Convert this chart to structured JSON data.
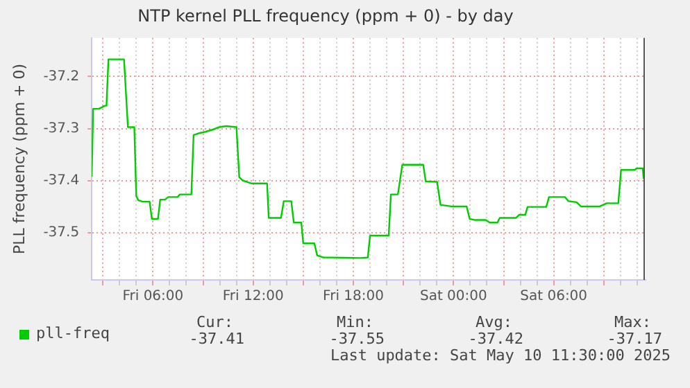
{
  "chart_data": {
    "type": "line",
    "title": "NTP kernel PLL frequency (ppm + 0) - by day",
    "ylabel": "PLL frequency (ppm + 0)",
    "xlim": [
      "2025-05-09T02:20",
      "2025-05-10T11:30"
    ],
    "ylim": [
      -37.59,
      -37.126
    ],
    "yticks": [
      -37.5,
      -37.4,
      -37.3,
      -37.2
    ],
    "xticks": [
      {
        "value": "2025-05-09T03:00",
        "label": null
      },
      {
        "value": "2025-05-09T04:00",
        "label": null
      },
      {
        "value": "2025-05-09T05:00",
        "label": null
      },
      {
        "value": "2025-05-09T06:00",
        "label": "Fri 06:00"
      },
      {
        "value": "2025-05-09T07:00",
        "label": null
      },
      {
        "value": "2025-05-09T08:00",
        "label": null
      },
      {
        "value": "2025-05-09T09:00",
        "label": null
      },
      {
        "value": "2025-05-09T10:00",
        "label": null
      },
      {
        "value": "2025-05-09T11:00",
        "label": null
      },
      {
        "value": "2025-05-09T12:00",
        "label": "Fri 12:00"
      },
      {
        "value": "2025-05-09T13:00",
        "label": null
      },
      {
        "value": "2025-05-09T14:00",
        "label": null
      },
      {
        "value": "2025-05-09T15:00",
        "label": null
      },
      {
        "value": "2025-05-09T16:00",
        "label": null
      },
      {
        "value": "2025-05-09T17:00",
        "label": null
      },
      {
        "value": "2025-05-09T18:00",
        "label": "Fri 18:00"
      },
      {
        "value": "2025-05-09T19:00",
        "label": null
      },
      {
        "value": "2025-05-09T20:00",
        "label": null
      },
      {
        "value": "2025-05-09T21:00",
        "label": null
      },
      {
        "value": "2025-05-09T22:00",
        "label": null
      },
      {
        "value": "2025-05-09T23:00",
        "label": null
      },
      {
        "value": "2025-05-10T00:00",
        "label": "Sat 00:00"
      },
      {
        "value": "2025-05-10T01:00",
        "label": null
      },
      {
        "value": "2025-05-10T02:00",
        "label": null
      },
      {
        "value": "2025-05-10T03:00",
        "label": null
      },
      {
        "value": "2025-05-10T04:00",
        "label": null
      },
      {
        "value": "2025-05-10T05:00",
        "label": null
      },
      {
        "value": "2025-05-10T06:00",
        "label": "Sat 06:00"
      },
      {
        "value": "2025-05-10T07:00",
        "label": null
      },
      {
        "value": "2025-05-10T08:00",
        "label": null
      },
      {
        "value": "2025-05-10T09:00",
        "label": null
      },
      {
        "value": "2025-05-10T10:00",
        "label": null
      },
      {
        "value": "2025-05-10T11:00",
        "label": null
      }
    ],
    "grid": true,
    "legend": "bottom left",
    "marker": "none",
    "line_style": "solid",
    "ref_lines": [
      {
        "axis": "x",
        "value": "2025-05-10T11:25",
        "color": "#555555"
      }
    ],
    "series": [
      {
        "name": "pll-freq",
        "color": "#00cc00",
        "x": [
          "2025-05-09T02:20",
          "2025-05-09T02:25",
          "2025-05-09T02:45",
          "2025-05-09T03:07",
          "2025-05-09T03:13",
          "2025-05-09T03:20",
          "2025-05-09T04:16",
          "2025-05-09T04:30",
          "2025-05-09T04:53",
          "2025-05-09T05:00",
          "2025-05-09T05:07",
          "2025-05-09T05:23",
          "2025-05-09T05:48",
          "2025-05-09T05:56",
          "2025-05-09T06:18",
          "2025-05-09T06:26",
          "2025-05-09T06:43",
          "2025-05-09T06:55",
          "2025-05-09T07:28",
          "2025-05-09T07:37",
          "2025-05-09T08:18",
          "2025-05-09T08:26",
          "2025-05-09T08:43",
          "2025-05-09T09:08",
          "2025-05-09T09:33",
          "2025-05-09T09:58",
          "2025-05-09T10:23",
          "2025-05-09T11:00",
          "2025-05-09T11:10",
          "2025-05-09T11:22",
          "2025-05-09T11:38",
          "2025-05-09T11:55",
          "2025-05-09T12:50",
          "2025-05-09T12:56",
          "2025-05-09T13:40",
          "2025-05-09T13:50",
          "2025-05-09T14:17",
          "2025-05-09T14:26",
          "2025-05-09T14:53",
          "2025-05-09T15:00",
          "2025-05-09T15:40",
          "2025-05-09T15:50",
          "2025-05-09T16:13",
          "2025-05-09T16:46",
          "2025-05-09T18:26",
          "2025-05-09T18:52",
          "2025-05-09T19:00",
          "2025-05-09T20:07",
          "2025-05-09T20:15",
          "2025-05-09T20:40",
          "2025-05-09T20:56",
          "2025-05-09T22:11",
          "2025-05-09T22:20",
          "2025-05-09T23:01",
          "2025-05-09T23:13",
          "2025-05-09T23:52",
          "2025-05-10T00:47",
          "2025-05-10T00:58",
          "2025-05-10T01:15",
          "2025-05-10T01:56",
          "2025-05-10T02:10",
          "2025-05-10T02:38",
          "2025-05-10T02:46",
          "2025-05-10T03:45",
          "2025-05-10T03:56",
          "2025-05-10T04:18",
          "2025-05-10T04:26",
          "2025-05-10T05:33",
          "2025-05-10T05:43",
          "2025-05-10T06:40",
          "2025-05-10T06:53",
          "2025-05-10T07:22",
          "2025-05-10T07:38",
          "2025-05-10T08:45",
          "2025-05-10T09:10",
          "2025-05-10T09:52",
          "2025-05-10T10:02",
          "2025-05-10T10:50",
          "2025-05-10T10:58",
          "2025-05-10T11:20",
          "2025-05-10T11:23"
        ],
        "values": [
          -37.392,
          -37.262,
          -37.262,
          -37.256,
          -37.256,
          -37.167,
          -37.167,
          -37.297,
          -37.297,
          -37.429,
          -37.437,
          -37.44,
          -37.44,
          -37.473,
          -37.473,
          -37.436,
          -37.436,
          -37.431,
          -37.431,
          -37.426,
          -37.426,
          -37.312,
          -37.309,
          -37.306,
          -37.302,
          -37.297,
          -37.295,
          -37.297,
          -37.393,
          -37.399,
          -37.402,
          -37.405,
          -37.405,
          -37.471,
          -37.471,
          -37.439,
          -37.439,
          -37.48,
          -37.48,
          -37.52,
          -37.52,
          -37.543,
          -37.547,
          -37.547,
          -37.548,
          -37.547,
          -37.505,
          -37.505,
          -37.426,
          -37.426,
          -37.369,
          -37.369,
          -37.401,
          -37.402,
          -37.446,
          -37.449,
          -37.449,
          -37.473,
          -37.475,
          -37.475,
          -37.48,
          -37.48,
          -37.471,
          -37.471,
          -37.465,
          -37.465,
          -37.45,
          -37.45,
          -37.431,
          -37.431,
          -37.439,
          -37.441,
          -37.449,
          -37.449,
          -37.443,
          -37.443,
          -37.379,
          -37.379,
          -37.376,
          -37.376,
          -37.396
        ]
      }
    ],
    "annotations": [
      "Cur:",
      "-37.41",
      "Min:",
      "-37.55",
      "Avg:",
      "-37.42",
      "Max:",
      "-37.17",
      "Last update: Sat May 10 11:30:00 2025"
    ]
  }
}
